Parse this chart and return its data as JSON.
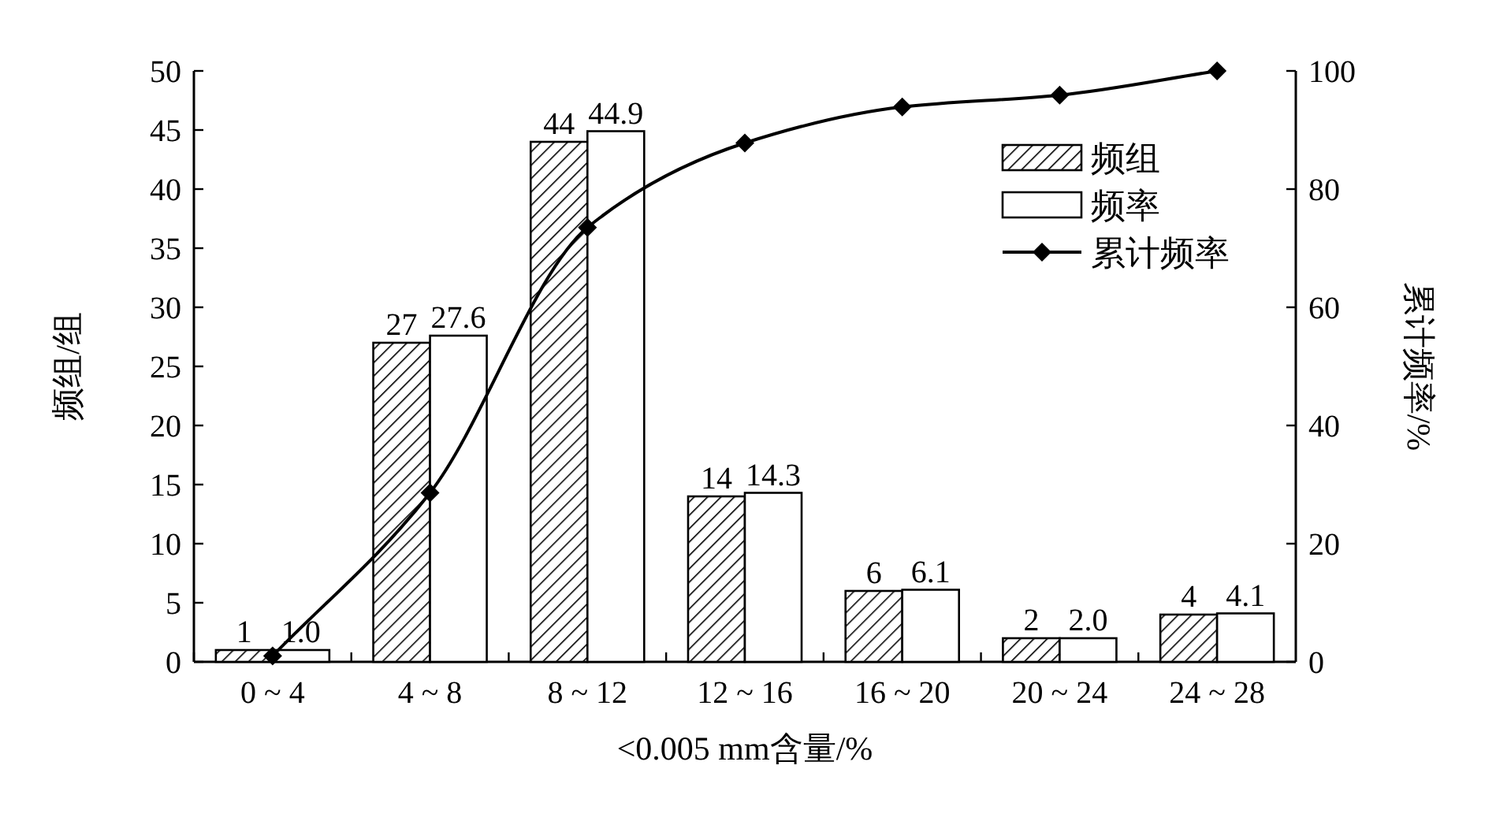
{
  "chart_data": {
    "type": "bar",
    "xlabel": "<0.005 mm含量/%",
    "ylabel": "频组/组",
    "y2label": "累计频率/%",
    "categories": [
      "0 ~ 4",
      "4 ~ 8",
      "8 ~ 12",
      "12 ~ 16",
      "16 ~ 20",
      "20 ~ 24",
      "24 ~ 28"
    ],
    "series": [
      {
        "name": "频组",
        "color": "#000000",
        "values": [
          1,
          27,
          44,
          14,
          6,
          2,
          4
        ],
        "value_labels": [
          "1",
          "27",
          "44",
          "14",
          "6",
          "2",
          "4"
        ]
      },
      {
        "name": "频率",
        "color": "#ffffff",
        "values": [
          1.0,
          27.6,
          44.9,
          14.3,
          6.1,
          2.0,
          4.1
        ],
        "value_labels": [
          "1.0",
          "27.6",
          "44.9",
          "14.3",
          "6.1",
          "2.0",
          "4.1"
        ]
      },
      {
        "name": "累计频率",
        "type": "line",
        "axis": "y2",
        "color": "#000000",
        "marker": "diamond",
        "values": [
          1.0,
          28.6,
          73.5,
          87.8,
          93.9,
          95.9,
          100.0
        ]
      }
    ],
    "ylim": [
      0,
      50
    ],
    "yticks": [
      0,
      5,
      10,
      15,
      20,
      25,
      30,
      35,
      40,
      45,
      50
    ],
    "y2lim": [
      0,
      100
    ],
    "y2ticks": [
      0,
      20,
      40,
      60,
      80,
      100
    ],
    "grid": false,
    "legend": "top right"
  }
}
